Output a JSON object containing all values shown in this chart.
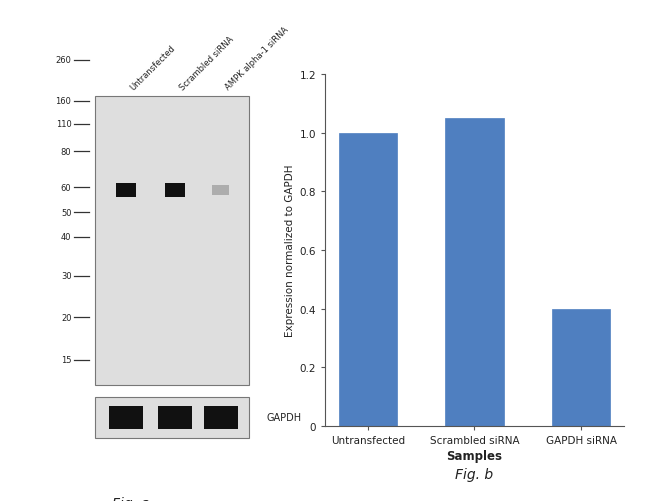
{
  "fig_width": 6.5,
  "fig_height": 5.02,
  "dpi": 100,
  "background_color": "#ffffff",
  "bar_categories": [
    "Untransfected",
    "Scrambled siRNA",
    "GAPDH siRNA"
  ],
  "bar_values": [
    1.0,
    1.05,
    0.4
  ],
  "bar_color": "#4f7fc0",
  "bar_width": 0.55,
  "ylabel": "Expression normalized to GAPDH",
  "xlabel": "Samples",
  "ylim": [
    0,
    1.2
  ],
  "yticks": [
    0,
    0.2,
    0.4,
    0.6,
    0.8,
    1.0,
    1.2
  ],
  "fig_b_label": "Fig. b",
  "fig_a_label": "Fig. a",
  "wb_marker_labels": [
    "260",
    "160",
    "110",
    "80",
    "60",
    "50",
    "40",
    "30",
    "20",
    "15"
  ],
  "wb_marker_yfracs": [
    0.895,
    0.81,
    0.762,
    0.705,
    0.63,
    0.578,
    0.527,
    0.447,
    0.36,
    0.272
  ],
  "lane_labels": [
    "Untransfected",
    "Scrambled siRNA",
    "AMPK alpha-1 siRNA"
  ],
  "gapdh_label": "GAPDH"
}
